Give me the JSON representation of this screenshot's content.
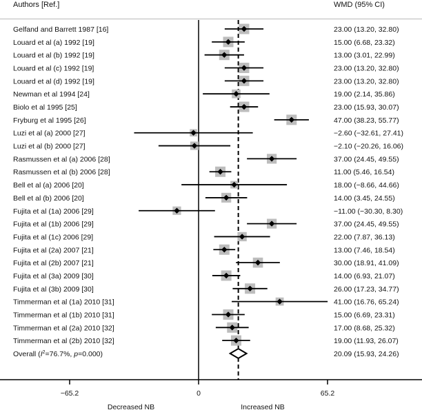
{
  "chart_data": {
    "type": "forest",
    "title": "",
    "left_header": "Authors [Ref.]",
    "right_header": "WMD (95% CI)",
    "xlabel_left": "Decreased NB",
    "xlabel_right": "Increased NB",
    "x_ticks": [
      -65.2,
      0,
      65.2
    ],
    "x_tick_labels": [
      "−65.2",
      "0",
      "65.2"
    ],
    "xlim": [
      -82,
      92
    ],
    "reference_line": 0,
    "overall_line": 20.09,
    "studies": [
      {
        "label": "Gelfand and Barrett 1987 [16]",
        "est": 23.0,
        "lo": 13.2,
        "hi": 32.8,
        "ci_text": "23.00 (13.20, 32.80)",
        "weight": 1.0
      },
      {
        "label": "Louard et al (a) 1992 [19]",
        "est": 15.0,
        "lo": 6.68,
        "hi": 23.32,
        "ci_text": "15.00 (6.68, 23.32)",
        "weight": 1.0
      },
      {
        "label": "Louard et al (b) 1992 [19]",
        "est": 13.0,
        "lo": 3.01,
        "hi": 22.99,
        "ci_text": "13.00 (3.01, 22.99)",
        "weight": 1.0
      },
      {
        "label": "Louard et al (c) 1992 [19]",
        "est": 23.0,
        "lo": 13.2,
        "hi": 32.8,
        "ci_text": "23.00 (13.20, 32.80)",
        "weight": 1.0
      },
      {
        "label": "Louard et al (d) 1992 [19]",
        "est": 23.0,
        "lo": 13.2,
        "hi": 32.8,
        "ci_text": "23.00 (13.20, 32.80)",
        "weight": 1.0
      },
      {
        "label": "Newman et al 1994 [24]",
        "est": 19.0,
        "lo": 2.14,
        "hi": 35.86,
        "ci_text": "19.00 (2.14, 35.86)",
        "weight": 0.7
      },
      {
        "label": "Biolo et al 1995 [25]",
        "est": 23.0,
        "lo": 15.93,
        "hi": 30.07,
        "ci_text": "23.00 (15.93, 30.07)",
        "weight": 1.0
      },
      {
        "label": "Fryburg et al 1995 [26]",
        "est": 47.0,
        "lo": 38.23,
        "hi": 55.77,
        "ci_text": "47.00 (38.23, 55.77)",
        "weight": 1.0
      },
      {
        "label": "Luzi et al (a) 2000 [27]",
        "est": -2.6,
        "lo": -32.61,
        "hi": 27.41,
        "ci_text": "−2.60 (−32.61, 27.41)",
        "weight": 0.45
      },
      {
        "label": "Luzi et al (b) 2000 [27]",
        "est": -2.1,
        "lo": -20.26,
        "hi": 16.06,
        "ci_text": "−2.10 (−20.26, 16.06)",
        "weight": 0.65
      },
      {
        "label": "Rasmussen et al (a) 2006 [28]",
        "est": 37.0,
        "lo": 24.45,
        "hi": 49.55,
        "ci_text": "37.00 (24.45, 49.55)",
        "weight": 0.9
      },
      {
        "label": "Rasmussen et al (b) 2006 [28]",
        "est": 11.0,
        "lo": 5.46,
        "hi": 16.54,
        "ci_text": "11.00 (5.46, 16.54)",
        "weight": 1.0
      },
      {
        "label": "Bell et al (a) 2006 [20]",
        "est": 18.0,
        "lo": -8.66,
        "hi": 44.66,
        "ci_text": "18.00 (−8.66, 44.66)",
        "weight": 0.5
      },
      {
        "label": "Bell et al (b) 2006 [20]",
        "est": 14.0,
        "lo": 3.45,
        "hi": 24.55,
        "ci_text": "14.00 (3.45, 24.55)",
        "weight": 0.9
      },
      {
        "label": "Fujita et al (1a) 2006 [29]",
        "est": -11.0,
        "lo": -30.3,
        "hi": 8.3,
        "ci_text": "−11.00 (−30.30, 8.30)",
        "weight": 0.65
      },
      {
        "label": "Fujita et al (1b) 2006 [29]",
        "est": 37.0,
        "lo": 24.45,
        "hi": 49.55,
        "ci_text": "37.00 (24.45, 49.55)",
        "weight": 0.9
      },
      {
        "label": "Fujita et al (1c) 2006 [29]",
        "est": 22.0,
        "lo": 7.87,
        "hi": 36.13,
        "ci_text": "22.00 (7.87, 36.13)",
        "weight": 0.8
      },
      {
        "label": "Fujita et al (2a) 2007 [21]",
        "est": 13.0,
        "lo": 7.46,
        "hi": 18.54,
        "ci_text": "13.00 (7.46, 18.54)",
        "weight": 1.0
      },
      {
        "label": "Fujita et al (2b) 2007 [21]",
        "est": 30.0,
        "lo": 18.91,
        "hi": 41.09,
        "ci_text": "30.00 (18.91, 41.09)",
        "weight": 0.95
      },
      {
        "label": "Fujita et al (3a) 2009 [30]",
        "est": 14.0,
        "lo": 6.93,
        "hi": 21.07,
        "ci_text": "14.00 (6.93, 21.07)",
        "weight": 1.0
      },
      {
        "label": "Fujita et al (3b) 2009 [30]",
        "est": 26.0,
        "lo": 17.23,
        "hi": 34.77,
        "ci_text": "26.00 (17.23, 34.77)",
        "weight": 1.0
      },
      {
        "label": "Timmerman et al (1a) 2010 [31]",
        "est": 41.0,
        "lo": 16.76,
        "hi": 65.24,
        "ci_text": "41.00 (16.76, 65.24)",
        "weight": 0.6
      },
      {
        "label": "Timmerman et al (1b) 2010 [31]",
        "est": 15.0,
        "lo": 6.69,
        "hi": 23.31,
        "ci_text": "15.00 (6.69, 23.31)",
        "weight": 1.0
      },
      {
        "label": "Timmerman et al (2a) 2010 [32]",
        "est": 17.0,
        "lo": 8.68,
        "hi": 25.32,
        "ci_text": "17.00 (8.68, 25.32)",
        "weight": 1.0
      },
      {
        "label": "Timmerman et al (2b) 2010 [32]",
        "est": 19.0,
        "lo": 11.93,
        "hi": 26.07,
        "ci_text": "19.00 (11.93, 26.07)",
        "weight": 1.0
      }
    ],
    "overall": {
      "label_prefix": "Overall  (",
      "i2_symbol": "I",
      "i2_sup": "2",
      "i2_text": "=76.7%, ",
      "p_symbol": "p",
      "p_text": "=0.000)",
      "est": 20.09,
      "lo": 15.93,
      "hi": 24.26,
      "ci_text": "20.09 (15.93, 24.26)"
    },
    "colors": {
      "box": "#bdbdbd",
      "line": "#000000",
      "header_rule": "#cccccc"
    }
  }
}
